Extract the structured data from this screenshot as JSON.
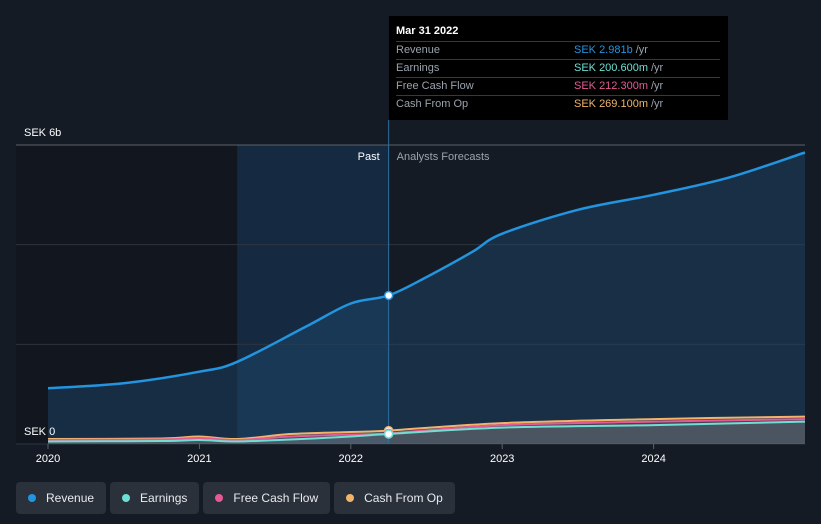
{
  "chart_data": {
    "type": "line",
    "y_axis": {
      "top_label": "SEK 6b",
      "bottom_label": "SEK 0",
      "ylim": [
        0,
        6.0
      ],
      "unit": "SEK b"
    },
    "x_ticks": [
      "2020",
      "2021",
      "2022",
      "2023",
      "2024"
    ],
    "divider_labels": {
      "past": "Past",
      "forecast": "Analysts Forecasts"
    },
    "past_end": 2022.25,
    "past_highlight_start": 2021.25,
    "series": [
      {
        "name": "Revenue",
        "color": "#2394df",
        "points": [
          [
            2020.0,
            1.12
          ],
          [
            2020.5,
            1.22
          ],
          [
            2021.0,
            1.45
          ],
          [
            2021.25,
            1.65
          ],
          [
            2021.7,
            2.35
          ],
          [
            2022.0,
            2.82
          ],
          [
            2022.25,
            2.981
          ],
          [
            2022.5,
            3.35
          ],
          [
            2022.8,
            3.85
          ],
          [
            2023.0,
            4.22
          ],
          [
            2023.5,
            4.7
          ],
          [
            2024.0,
            5.0
          ],
          [
            2024.5,
            5.35
          ],
          [
            2025.0,
            5.85
          ]
        ],
        "marker": [
          2022.25,
          2.981
        ]
      },
      {
        "name": "Earnings",
        "color": "#6de0d3",
        "points": [
          [
            2020.0,
            0.05
          ],
          [
            2020.75,
            0.06
          ],
          [
            2021.0,
            0.08
          ],
          [
            2021.25,
            0.05
          ],
          [
            2021.6,
            0.09
          ],
          [
            2022.0,
            0.15
          ],
          [
            2022.25,
            0.2006
          ],
          [
            2023.0,
            0.33
          ],
          [
            2024.0,
            0.38
          ],
          [
            2025.0,
            0.45
          ]
        ],
        "marker": [
          2022.25,
          0.2006
        ]
      },
      {
        "name": "Free Cash Flow",
        "color": "#e55a94",
        "points": [
          [
            2020.0,
            0.08
          ],
          [
            2020.75,
            0.09
          ],
          [
            2021.0,
            0.12
          ],
          [
            2021.25,
            0.08
          ],
          [
            2021.6,
            0.15
          ],
          [
            2022.0,
            0.19
          ],
          [
            2022.25,
            0.2123
          ],
          [
            2023.0,
            0.38
          ],
          [
            2024.0,
            0.45
          ],
          [
            2025.0,
            0.5
          ]
        ],
        "marker": [
          2022.25,
          0.2123
        ]
      },
      {
        "name": "Cash From Op",
        "color": "#f2b46b",
        "points": [
          [
            2020.0,
            0.1
          ],
          [
            2020.75,
            0.11
          ],
          [
            2021.0,
            0.15
          ],
          [
            2021.25,
            0.1
          ],
          [
            2021.6,
            0.2
          ],
          [
            2022.0,
            0.24
          ],
          [
            2022.25,
            0.2691
          ],
          [
            2023.0,
            0.42
          ],
          [
            2024.0,
            0.5
          ],
          [
            2025.0,
            0.55
          ]
        ],
        "marker": [
          2022.25,
          0.2691
        ]
      }
    ]
  },
  "tooltip": {
    "date": "Mar 31 2022",
    "rows": [
      {
        "label": "Revenue",
        "value": "SEK 2.981b",
        "unit": "/yr",
        "color": "#2394df"
      },
      {
        "label": "Earnings",
        "value": "SEK 200.600m",
        "unit": "/yr",
        "color": "#6de0d3"
      },
      {
        "label": "Free Cash Flow",
        "value": "SEK 212.300m",
        "unit": "/yr",
        "color": "#e55a94"
      },
      {
        "label": "Cash From Op",
        "value": "SEK 269.100m",
        "unit": "/yr",
        "color": "#f2b46b"
      }
    ]
  },
  "legend": [
    {
      "label": "Revenue",
      "color": "#2394df"
    },
    {
      "label": "Earnings",
      "color": "#6de0d3"
    },
    {
      "label": "Free Cash Flow",
      "color": "#e55a94"
    },
    {
      "label": "Cash From Op",
      "color": "#f2b46b"
    }
  ]
}
